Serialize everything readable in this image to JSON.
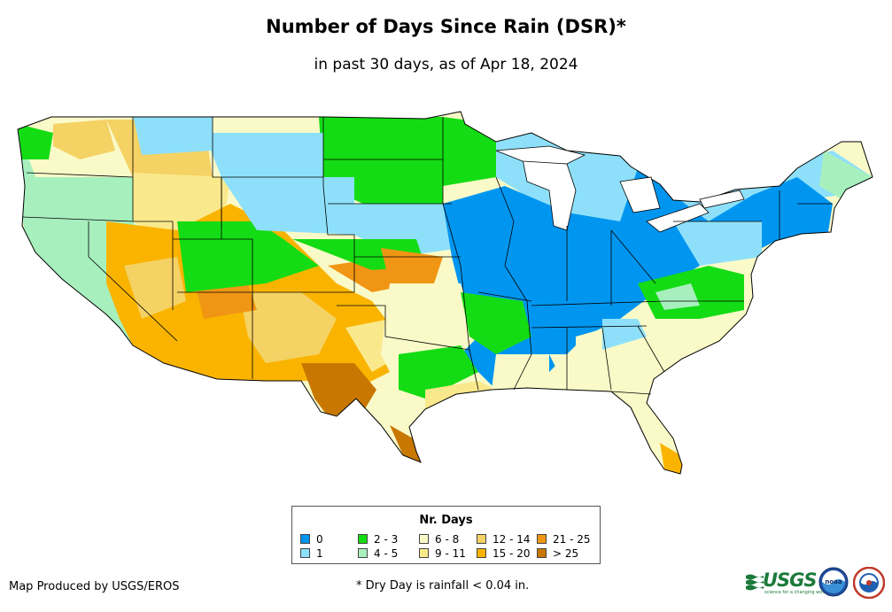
{
  "title": "Number of Days Since Rain (DSR)*",
  "subtitle": "in past 30 days, as of Apr 18, 2024",
  "legend": {
    "title": "Nr. Days",
    "items": [
      {
        "label": "0",
        "color": "#0096f0"
      },
      {
        "label": "1",
        "color": "#8ee0fa"
      },
      {
        "label": "2 - 3",
        "color": "#14dc14"
      },
      {
        "label": "4 - 5",
        "color": "#a7f0be"
      },
      {
        "label": "6 - 8",
        "color": "#fafac8"
      },
      {
        "label": "9 - 11",
        "color": "#fae98c"
      },
      {
        "label": "12 - 14",
        "color": "#f5d264"
      },
      {
        "label": "15 - 20",
        "color": "#fab400"
      },
      {
        "label": "21 - 25",
        "color": "#f09614"
      },
      {
        "label": "> 25",
        "color": "#c87800"
      }
    ]
  },
  "credit": "Map Produced by USGS/EROS",
  "footnote": "* Dry Day is rainfall < 0.04 in.",
  "logos": {
    "usgs": {
      "text": "USGS",
      "tagline": "science for a changing world",
      "color": "#1b7a3a"
    },
    "noaa": {
      "text": "noaa"
    }
  }
}
